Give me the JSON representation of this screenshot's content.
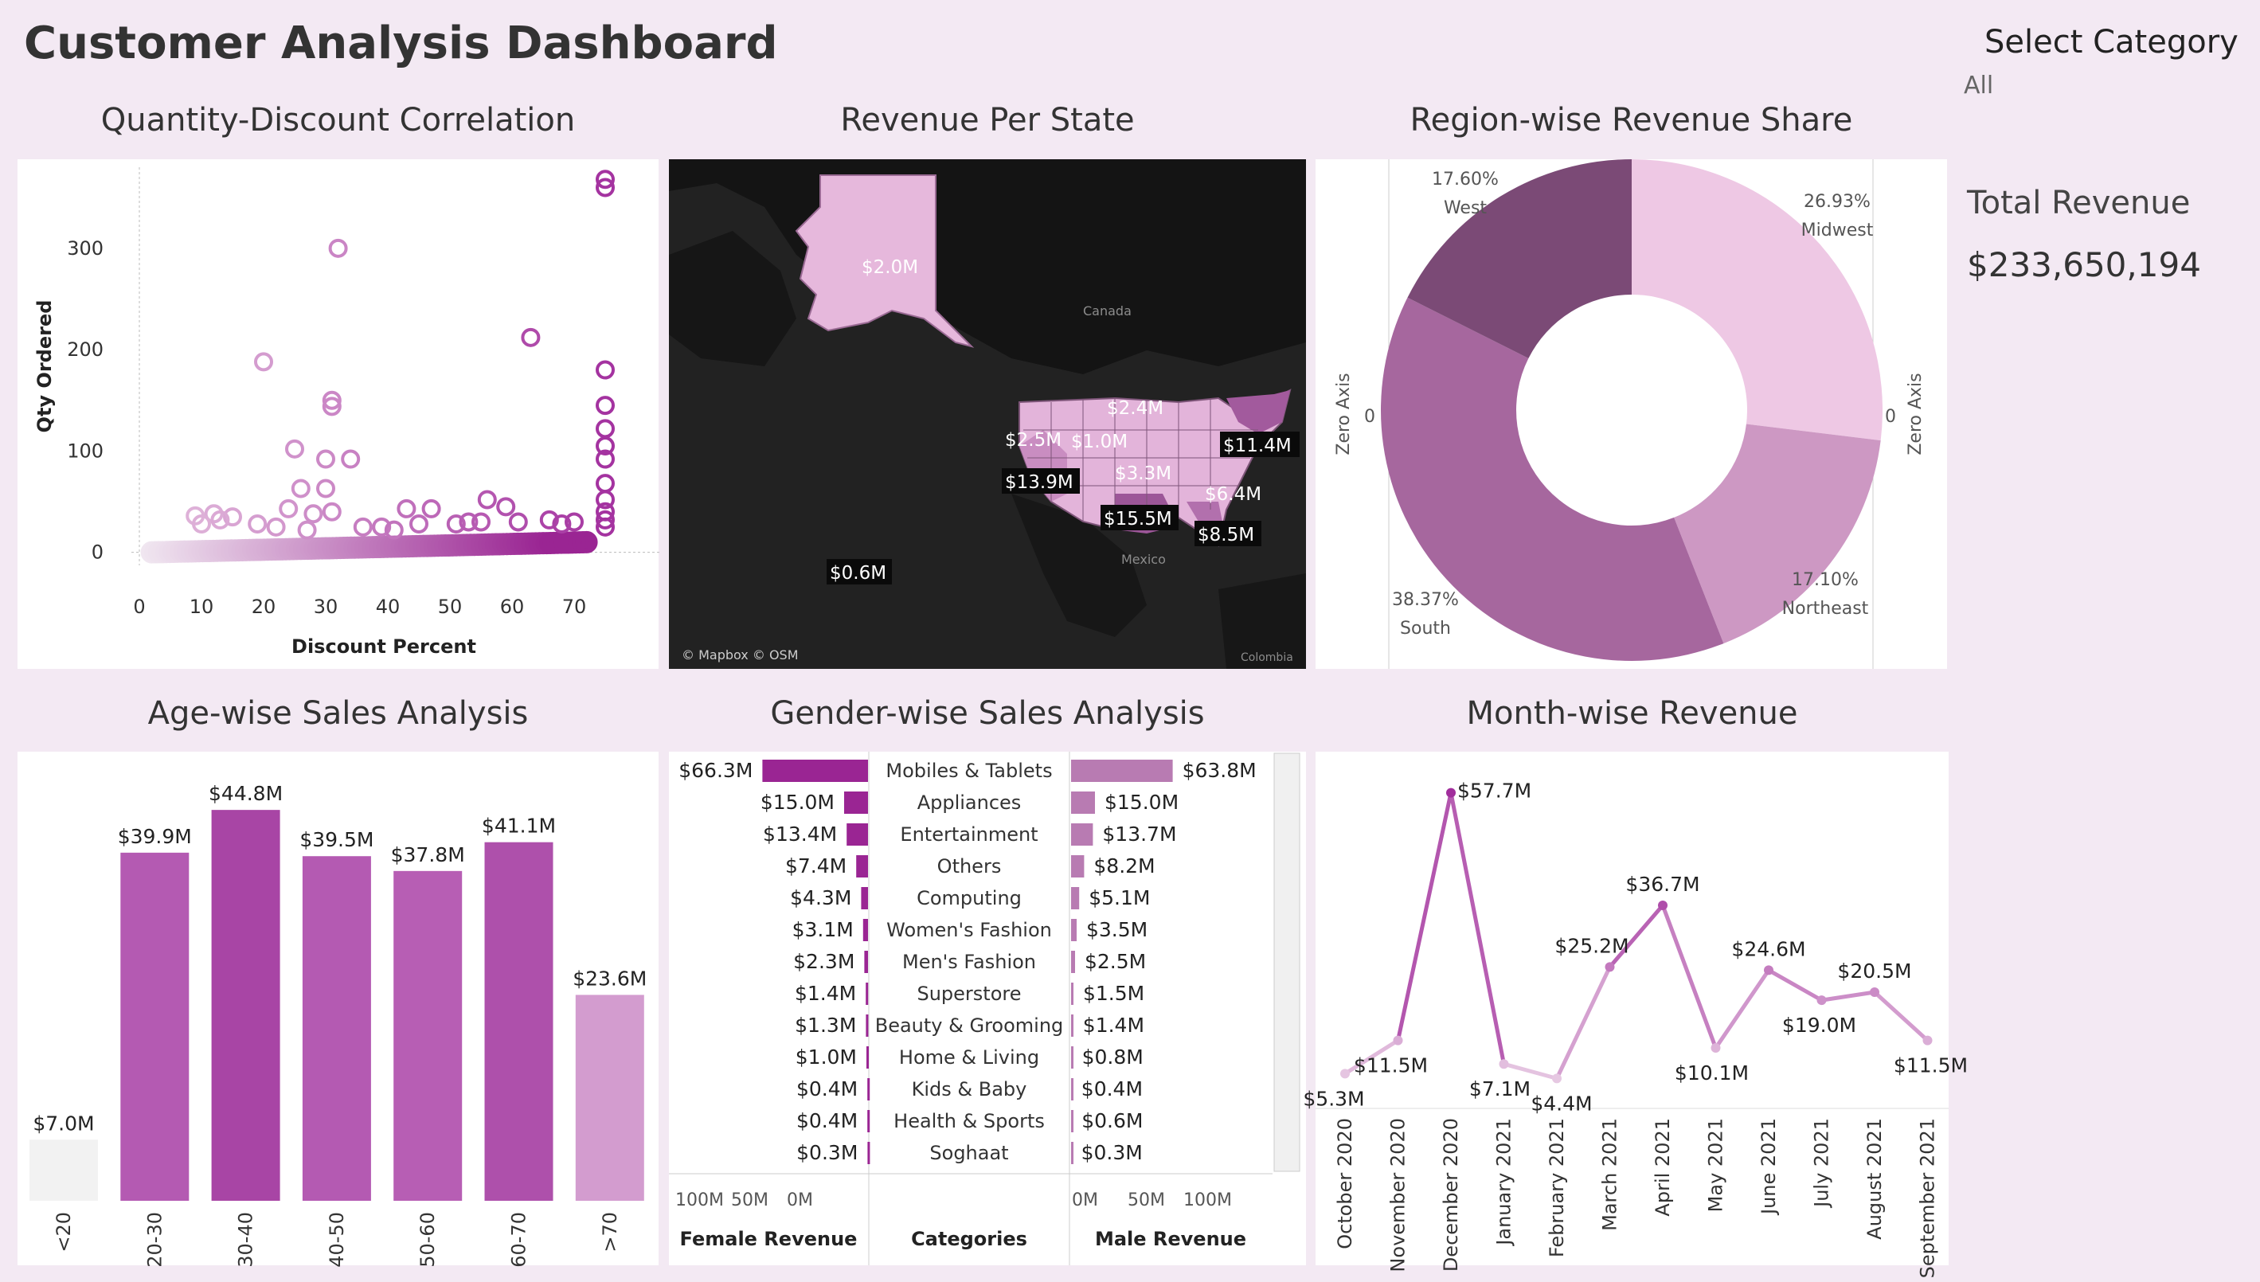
{
  "header": {
    "title": "Customer Analysis Dashboard",
    "select_label": "Select Category",
    "select_value": "All",
    "kpi_label": "Total Revenue",
    "kpi_value": "$233,650,194"
  },
  "titles": {
    "scatter": "Quantity-Discount Correlation",
    "map": "Revenue Per State",
    "donut": "Region-wise Revenue Share",
    "age": "Age-wise Sales Analysis",
    "gender": "Gender-wise Sales Analysis",
    "month": "Month-wise Revenue"
  },
  "map": {
    "attribution": "© Mapbox © OSM",
    "places": [
      "Canada",
      "Mexico",
      "Colombia"
    ],
    "labels": [
      "$2.0M",
      "$2.4M",
      "$2.5M",
      "$1.0M",
      "$11.4M",
      "$13.9M",
      "$3.3M",
      "$6.4M",
      "$15.5M",
      "$8.5M",
      "$0.6M"
    ]
  },
  "colors": {
    "background": "#f3e9f3",
    "accent_dark": "#9a2593",
    "accent_mid": "#b45ab2",
    "accent_light": "#e6c2e0"
  },
  "chart_data": [
    {
      "type": "scatter",
      "title": "Quantity-Discount Correlation",
      "xlabel": "Discount Percent",
      "ylabel": "Qty Ordered",
      "xlim": [
        0,
        75
      ],
      "ylim": [
        -5,
        380
      ],
      "xticks": [
        0,
        10,
        20,
        30,
        40,
        50,
        60,
        70
      ],
      "yticks": [
        0,
        100,
        200,
        300
      ],
      "points": [
        [
          32,
          300
        ],
        [
          20,
          188
        ],
        [
          63,
          212
        ],
        [
          75,
          368
        ],
        [
          75,
          360
        ],
        [
          75,
          180
        ],
        [
          75,
          145
        ],
        [
          75,
          122
        ],
        [
          75,
          105
        ],
        [
          75,
          92
        ],
        [
          75,
          68
        ],
        [
          75,
          52
        ],
        [
          75,
          40
        ],
        [
          75,
          32
        ],
        [
          75,
          25
        ],
        [
          31,
          150
        ],
        [
          31,
          144
        ],
        [
          25,
          102
        ],
        [
          30,
          92
        ],
        [
          34,
          92
        ],
        [
          26,
          63
        ],
        [
          30,
          63
        ],
        [
          24,
          43
        ],
        [
          31,
          40
        ],
        [
          28,
          38
        ],
        [
          43,
          43
        ],
        [
          47,
          43
        ],
        [
          56,
          52
        ],
        [
          59,
          45
        ],
        [
          12,
          38
        ],
        [
          15,
          35
        ],
        [
          9,
          36
        ],
        [
          13,
          32
        ],
        [
          10,
          28
        ],
        [
          19,
          28
        ],
        [
          22,
          25
        ],
        [
          39,
          25
        ],
        [
          45,
          28
        ],
        [
          51,
          28
        ],
        [
          61,
          30
        ],
        [
          66,
          32
        ],
        [
          70,
          30
        ],
        [
          68,
          28
        ],
        [
          55,
          30
        ],
        [
          53,
          30
        ],
        [
          36,
          25
        ],
        [
          41,
          22
        ],
        [
          27,
          22
        ]
      ],
      "band": [
        [
          2,
          0
        ],
        [
          72,
          10
        ]
      ]
    },
    {
      "type": "pie",
      "title": "Region-wise Revenue Share",
      "labels": [
        "Midwest",
        "Northeast",
        "South",
        "West"
      ],
      "values": [
        26.93,
        17.1,
        38.37,
        17.6
      ],
      "display": [
        "26.93%",
        "17.10%",
        "38.37%",
        "17.60%"
      ],
      "colors": [
        "#eec8e4",
        "#cd98c3",
        "#a6679e",
        "#7b4a76"
      ],
      "axis_labels": [
        "Zero Axis",
        "Zero Axis"
      ],
      "axis_ticks": [
        "0",
        "0"
      ]
    },
    {
      "type": "bar",
      "title": "Age-wise Sales Analysis",
      "categories": [
        "<20",
        "20-30",
        "30-40",
        "40-50",
        "50-60",
        "60-70",
        ">70"
      ],
      "values": [
        7.0,
        39.9,
        44.8,
        39.5,
        37.8,
        41.1,
        23.6
      ],
      "labels": [
        "$7.0M",
        "$39.9M",
        "$44.8M",
        "$39.5M",
        "$37.8M",
        "$41.1M",
        "$23.6M"
      ],
      "colors": [
        "#f2f2f2",
        "#b45ab2",
        "#a845a5",
        "#b45ab2",
        "#b75eb4",
        "#ae50ab",
        "#d39ccf"
      ],
      "ylim": [
        0,
        46
      ]
    },
    {
      "type": "bar",
      "title": "Gender-wise Sales Analysis",
      "categories": [
        "Mobiles & Tablets",
        "Appliances",
        "Entertainment",
        "Others",
        "Computing",
        "Women's Fashion",
        "Men's Fashion",
        "Superstore",
        "Beauty & Grooming",
        "Home & Living",
        "Kids & Baby",
        "Health & Sports",
        "Soghaat"
      ],
      "series": [
        {
          "name": "Female Revenue",
          "values": [
            66.3,
            15.0,
            13.4,
            7.4,
            4.3,
            3.1,
            2.3,
            1.4,
            1.3,
            1.0,
            0.4,
            0.4,
            0.3
          ],
          "labels": [
            "$66.3M",
            "$15.0M",
            "$13.4M",
            "$7.4M",
            "$4.3M",
            "$3.1M",
            "$2.3M",
            "$1.4M",
            "$1.3M",
            "$1.0M",
            "$0.4M",
            "$0.4M",
            "$0.3M"
          ]
        },
        {
          "name": "Male Revenue",
          "values": [
            63.8,
            15.0,
            13.7,
            8.2,
            5.1,
            3.5,
            2.5,
            1.5,
            1.4,
            0.8,
            0.4,
            0.6,
            0.3
          ],
          "labels": [
            "$63.8M",
            "$15.0M",
            "$13.7M",
            "$8.2M",
            "$5.1M",
            "$3.5M",
            "$2.5M",
            "$1.5M",
            "$1.4M",
            "$0.8M",
            "$0.4M",
            "$0.6M",
            "$0.3M"
          ]
        }
      ],
      "column_header": "Categories",
      "female_ticks": [
        "100M",
        "50M",
        "0M"
      ],
      "male_ticks": [
        "0M",
        "50M",
        "100M"
      ],
      "xlim": [
        0,
        100
      ]
    },
    {
      "type": "line",
      "title": "Month-wise Revenue",
      "x": [
        "October 2020",
        "November 2020",
        "December 2020",
        "January 2021",
        "February 2021",
        "March 2021",
        "April 2021",
        "May 2021",
        "June 2021",
        "July 2021",
        "August 2021",
        "September 2021"
      ],
      "values": [
        5.3,
        11.5,
        57.7,
        7.1,
        4.4,
        25.2,
        36.7,
        10.1,
        24.6,
        19.0,
        20.5,
        11.5
      ],
      "labels": [
        "$5.3M",
        "$11.5M",
        "$57.7M",
        "$7.1M",
        "$4.4M",
        "$25.2M",
        "$36.7M",
        "$10.1M",
        "$24.6M",
        "$19.0M",
        "$20.5M",
        "$11.5M"
      ],
      "ylim": [
        0,
        60
      ]
    }
  ]
}
